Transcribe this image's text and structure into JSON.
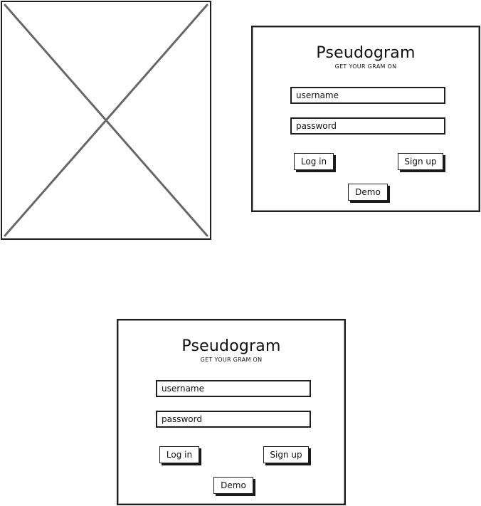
{
  "app": {
    "title": "Pseudogram",
    "tagline": "GET YOUR GRAM ON"
  },
  "login_form": {
    "username_placeholder": "username",
    "password_placeholder": "password",
    "login_label": "Log in",
    "signup_label": "Sign up",
    "demo_label": "Demo"
  },
  "placeholder_image": {
    "icon": "image-placeholder-x"
  }
}
